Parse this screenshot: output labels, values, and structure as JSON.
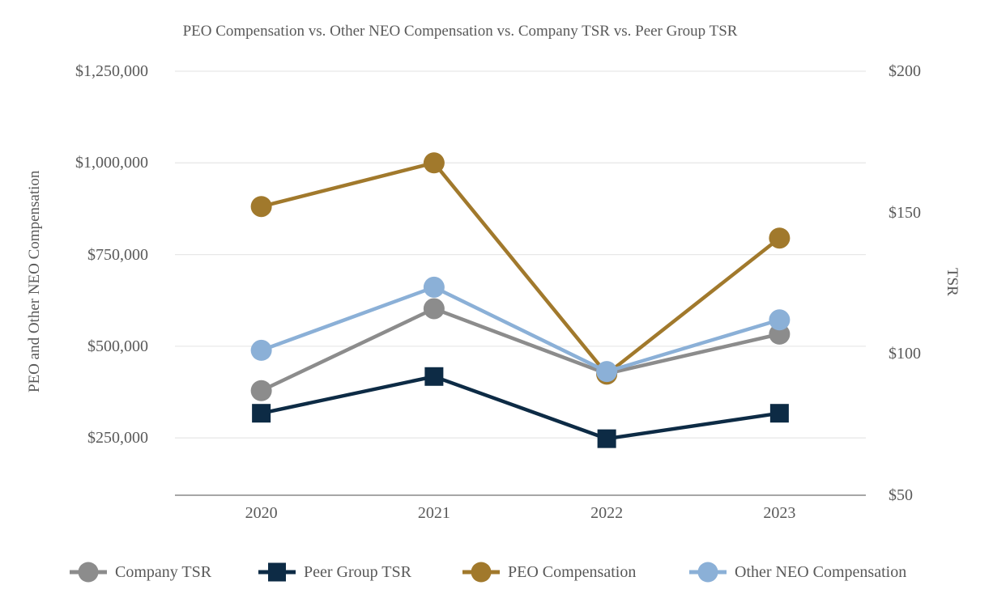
{
  "title": "PEO Compensation vs. Other NEO Compensation vs. Company TSR vs. Peer Group TSR",
  "colors": {
    "company_tsr": "#8C8C8C",
    "peer_group_tsr": "#0D2B45",
    "peo_compensation": "#A1792C",
    "other_neo_compensation": "#8BB0D7",
    "gridline": "#E8E8E8",
    "axis_line": "#9A9A9A",
    "text": "#595959"
  },
  "chart_data": {
    "type": "line",
    "title": "PEO Compensation vs. Other NEO Compensation vs. Company TSR vs. Peer Group TSR",
    "categories": [
      "2020",
      "2021",
      "2022",
      "2023"
    ],
    "series": [
      {
        "name": "Company TSR",
        "axis": "right",
        "marker": "circle",
        "color": "#8C8C8C",
        "values": [
          87,
          116,
          93,
          107
        ]
      },
      {
        "name": "Peer Group TSR",
        "axis": "right",
        "marker": "square",
        "color": "#0D2B45",
        "values": [
          79,
          92,
          70,
          79
        ]
      },
      {
        "name": "PEO Compensation",
        "axis": "left",
        "marker": "circle",
        "color": "#A1792C",
        "values": [
          881000,
          1000000,
          424000,
          795000
        ]
      },
      {
        "name": "Other NEO Compensation",
        "axis": "left",
        "marker": "circle",
        "color": "#8BB0D7",
        "values": [
          489000,
          661000,
          431000,
          572000
        ]
      }
    ],
    "left_axis": {
      "label": "PEO and Other NEO Compensation",
      "ticks": [
        250000,
        500000,
        750000,
        1000000,
        1250000
      ],
      "tick_labels": [
        "$250,000",
        "$500,000",
        "$750,000",
        "$1,000,000",
        "$1,250,000"
      ],
      "range_top": 1250000
    },
    "right_axis": {
      "label": "TSR",
      "ticks": [
        50,
        100,
        150,
        200
      ],
      "tick_labels": [
        "$50",
        "$100",
        "$150",
        "$200"
      ],
      "min": 50,
      "max": 200
    },
    "grid": "horizontal-only",
    "legend_position": "bottom"
  }
}
